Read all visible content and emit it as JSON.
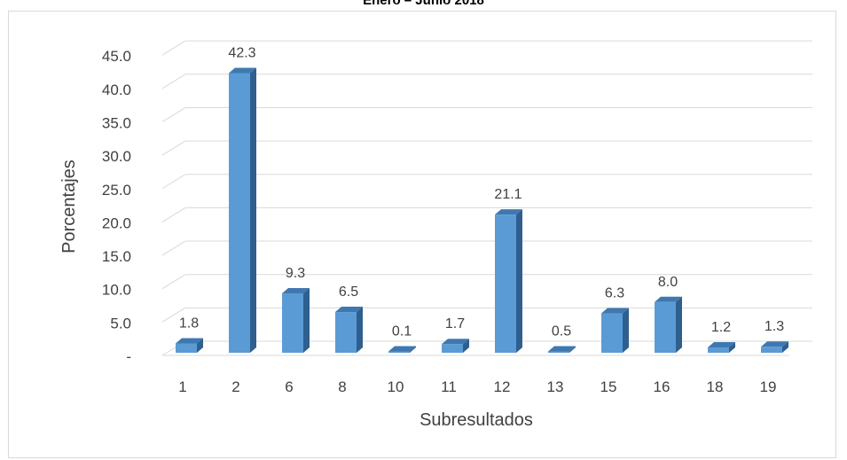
{
  "chart_data": {
    "type": "bar",
    "title": "Enero – Junio 2018",
    "xlabel": "Subresultados",
    "ylabel": "Porcentajes",
    "ylim": [
      0,
      47.5
    ],
    "yticks": [
      "-",
      "5.0",
      "10.0",
      "15.0",
      "20.0",
      "25.0",
      "30.0",
      "35.0",
      "40.0",
      "45.0"
    ],
    "yticks_values": [
      0,
      5,
      10,
      15,
      20,
      25,
      30,
      35,
      40,
      45
    ],
    "categories": [
      "1",
      "2",
      "6",
      "8",
      "10",
      "11",
      "12",
      "13",
      "15",
      "16",
      "18",
      "19"
    ],
    "values": [
      1.8,
      42.3,
      9.3,
      6.5,
      0.1,
      1.7,
      21.1,
      0.5,
      6.3,
      8.0,
      1.2,
      1.3
    ],
    "value_labels": [
      "1.8",
      "42.3",
      "9.3",
      "6.5",
      "0.1",
      "1.7",
      "21.1",
      "0.5",
      "6.3",
      "8.0",
      "1.2",
      "1.3"
    ],
    "grid": true,
    "legend": "none",
    "colors": {
      "bar_front": "#5b9bd5",
      "bar_side": "#2e5f8f",
      "bar_top": "#3f78b0",
      "gridline": "#d9d9d9",
      "text": "#404040"
    }
  }
}
